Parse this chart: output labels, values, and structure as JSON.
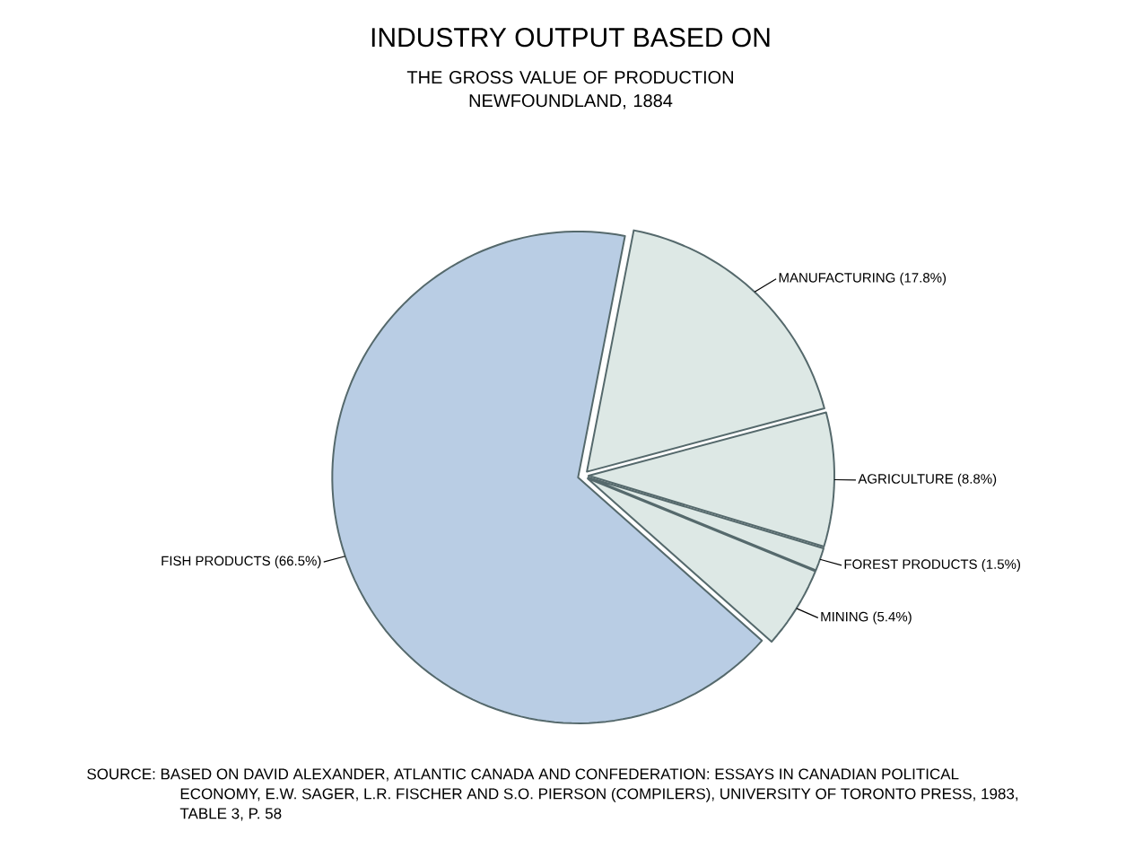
{
  "chart_data": {
    "type": "pie",
    "title": "INDUSTRY OUTPUT BASED ON",
    "subtitle": "THE GROSS VALUE OF PRODUCTION NEWFOUNDLAND, 1884",
    "categories": [
      "MANUFACTURING",
      "AGRICULTURE",
      "FOREST PRODUCTS",
      "MINING",
      "FISH PRODUCTS"
    ],
    "values": [
      17.8,
      8.8,
      1.5,
      5.4,
      66.5
    ],
    "value_labels": [
      "(17.8%)",
      "(8.8%)",
      "(1.5%)",
      "(5.4%)",
      "(66.5%)"
    ],
    "colors": [
      "#dde8e5",
      "#dde8e5",
      "#dde8e5",
      "#dde8e5",
      "#b9cde4"
    ],
    "annotations": [
      "SOURCE: BASED ON DAVID ALEXANDER, ATLANTIC CANADA AND CONFEDERATION: ESSAYS IN CANADIAN POLITICAL ECONOMY, E.W. SAGER, L.R. FISCHER AND S.O. PIERSON (COMPILERS), UNIVERSITY OF TORONTO PRESS, 1983, TABLE 3, P. 58"
    ]
  }
}
